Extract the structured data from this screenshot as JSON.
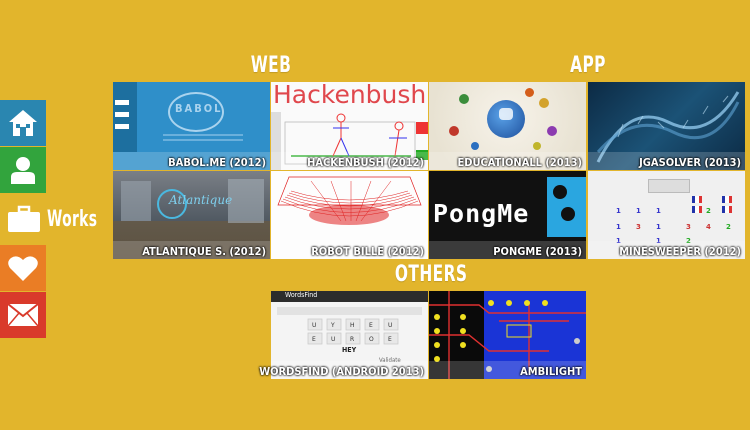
{
  "sections": {
    "web": "WEB",
    "app": "APP",
    "others": "OTHERS"
  },
  "sidebar": {
    "works_label": "Works"
  },
  "tiles": {
    "babol": {
      "label": "BABOL.ME (2012)",
      "logo_text": "BABOL"
    },
    "hackenbush": {
      "label": "HACKENBUSH (2012)",
      "title": "Hackenbush"
    },
    "educational": {
      "label": "EDUCATIONALL (2013)"
    },
    "jgasolver": {
      "label": "JGASOLVER (2013)"
    },
    "atlantique": {
      "label": "ATLANTIQUE S. (2012)",
      "logo_text": "Atlantique"
    },
    "robotbille": {
      "label": "ROBOT BILLE (2012)"
    },
    "pongme": {
      "label": "PONGME (2013)",
      "title": "PongMe"
    },
    "minesweeper": {
      "label": "MINESWEEPER (2012)"
    },
    "wordsfind": {
      "label": "WORDSFIND (ANDROID 2013)",
      "app_title": "WordsFind",
      "word": "HEY",
      "validate": "Validate"
    },
    "ambilight": {
      "label": "AMBILIGHT"
    }
  },
  "colors": {
    "background": "#e2b52c",
    "home": "#2a86b0",
    "about": "#32a43d",
    "like": "#ea7d25",
    "mail": "#d93a2b"
  }
}
